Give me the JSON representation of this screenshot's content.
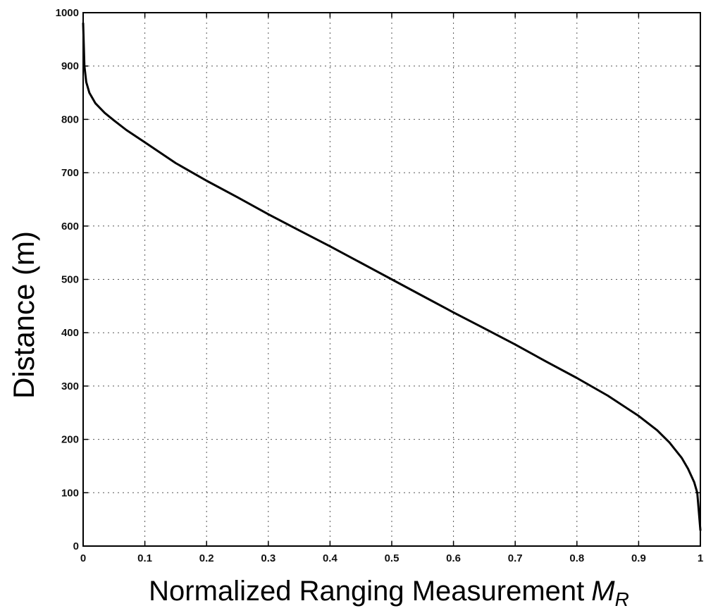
{
  "chart_data": {
    "type": "line",
    "title": "",
    "xlabel": "Normalized Ranging Measurement",
    "xlabel_symbol": "M",
    "xlabel_subscript": "R",
    "ylabel": "Distance (m)",
    "xlim": [
      0,
      1
    ],
    "ylim": [
      0,
      1000
    ],
    "xticks": [
      "0",
      "0.1",
      "0.2",
      "0.3",
      "0.4",
      "0.5",
      "0.6",
      "0.7",
      "0.8",
      "0.9",
      "1"
    ],
    "yticks": [
      "0",
      "100",
      "200",
      "300",
      "400",
      "500",
      "600",
      "700",
      "800",
      "900",
      "1000"
    ],
    "grid": true,
    "grid_style": "dotted",
    "line_color": "#000000",
    "series": [
      {
        "x": [
          0.0,
          0.002,
          0.005,
          0.01,
          0.02,
          0.035,
          0.05,
          0.07,
          0.1,
          0.15,
          0.2,
          0.25,
          0.3,
          0.35,
          0.4,
          0.45,
          0.5,
          0.55,
          0.6,
          0.65,
          0.7,
          0.75,
          0.8,
          0.85,
          0.9,
          0.93,
          0.95,
          0.97,
          0.98,
          0.99,
          0.995,
          1.0
        ],
        "y": [
          980,
          900,
          870,
          850,
          830,
          812,
          798,
          780,
          757,
          718,
          685,
          654,
          622,
          592,
          562,
          531,
          500,
          469,
          438,
          408,
          378,
          346,
          315,
          282,
          244,
          217,
          194,
          165,
          145,
          120,
          100,
          30
        ]
      }
    ]
  }
}
